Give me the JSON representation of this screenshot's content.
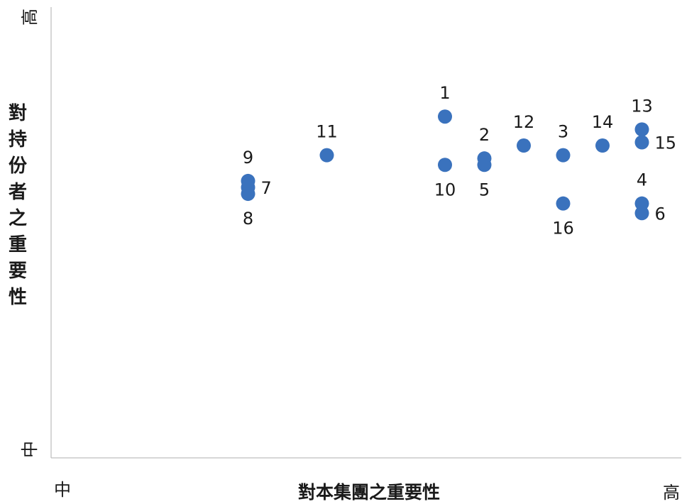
{
  "chart_data": {
    "type": "scatter",
    "xlabel": "對本集團之重要性",
    "ylabel": "對持份者之重要性",
    "x_low": "中",
    "x_high": "高",
    "y_low": "中",
    "y_high": "高",
    "xlim": [
      0,
      16
    ],
    "ylim": [
      0,
      14
    ],
    "grid": false,
    "legend": "none",
    "color": "#3a72bd",
    "points": [
      {
        "label": "1",
        "x": 10.0,
        "y": 10.6,
        "label_pos": "above"
      },
      {
        "label": "2",
        "x": 11.0,
        "y": 9.3,
        "label_pos": "above"
      },
      {
        "label": "3",
        "x": 13.0,
        "y": 9.4,
        "label_pos": "above"
      },
      {
        "label": "4",
        "x": 15.0,
        "y": 7.9,
        "label_pos": "above"
      },
      {
        "label": "5",
        "x": 11.0,
        "y": 9.1,
        "label_pos": "below"
      },
      {
        "label": "6",
        "x": 15.0,
        "y": 7.6,
        "label_pos": "right"
      },
      {
        "label": "7",
        "x": 5.0,
        "y": 8.4,
        "label_pos": "right"
      },
      {
        "label": "8",
        "x": 5.0,
        "y": 8.2,
        "label_pos": "below"
      },
      {
        "label": "9",
        "x": 5.0,
        "y": 8.6,
        "label_pos": "above"
      },
      {
        "label": "10",
        "x": 10.0,
        "y": 9.1,
        "label_pos": "below"
      },
      {
        "label": "11",
        "x": 7.0,
        "y": 9.4,
        "label_pos": "above"
      },
      {
        "label": "12",
        "x": 12.0,
        "y": 9.7,
        "label_pos": "above"
      },
      {
        "label": "13",
        "x": 15.0,
        "y": 10.2,
        "label_pos": "above"
      },
      {
        "label": "14",
        "x": 14.0,
        "y": 9.7,
        "label_pos": "above"
      },
      {
        "label": "15",
        "x": 15.0,
        "y": 9.8,
        "label_pos": "right"
      },
      {
        "label": "16",
        "x": 13.0,
        "y": 7.9,
        "label_pos": "below"
      }
    ]
  }
}
